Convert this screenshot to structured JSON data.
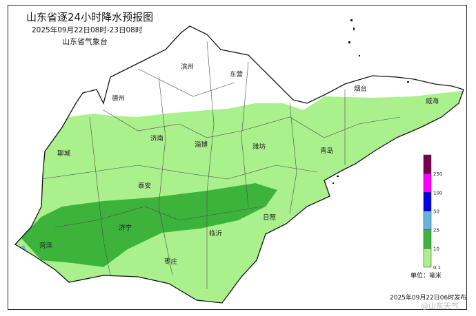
{
  "title": "山东省逐24小时降水预报图",
  "period": "2025年09月22日08时-23日08时",
  "issuer": "山东省气象台",
  "cities": [
    {
      "name": "滨州",
      "rain": "none"
    },
    {
      "name": "东营",
      "rain": "none"
    },
    {
      "name": "烟台",
      "rain": "none"
    },
    {
      "name": "威海",
      "rain": "0.1-10"
    },
    {
      "name": "德州",
      "rain": "none"
    },
    {
      "name": "济南",
      "rain": "0.1-10"
    },
    {
      "name": "淄博",
      "rain": "0.1-10"
    },
    {
      "name": "潍坊",
      "rain": "0.1-10"
    },
    {
      "name": "青岛",
      "rain": "0.1-10"
    },
    {
      "name": "聊城",
      "rain": "0.1-10"
    },
    {
      "name": "泰安",
      "rain": "0.1-10"
    },
    {
      "name": "济宁",
      "rain": "10-25"
    },
    {
      "name": "菏泽",
      "rain": "10-25"
    },
    {
      "name": "临沂",
      "rain": "10-25"
    },
    {
      "name": "日照",
      "rain": "0.1-10"
    },
    {
      "name": "枣庄",
      "rain": "0.1-10"
    }
  ],
  "legend": {
    "unit": "单位：毫米",
    "ticks": [
      "0.1",
      "10",
      "25",
      "50",
      "100",
      "250"
    ],
    "colors": [
      "#aaf08c",
      "#3cb43c",
      "#64b4dc",
      "#0000e6",
      "#ff00ff",
      "#780050"
    ]
  },
  "issued": "2025年09月22日06时发布",
  "watermark": "@山东天气"
}
